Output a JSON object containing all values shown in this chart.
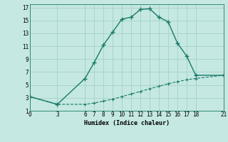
{
  "xlabel": "Humidex (Indice chaleur)",
  "background_color": "#c5e8e2",
  "grid_color": "#a8d4cc",
  "line_color": "#1a7a6a",
  "xticks": [
    0,
    3,
    6,
    7,
    8,
    9,
    10,
    11,
    12,
    13,
    14,
    15,
    16,
    17,
    18,
    21
  ],
  "yticks": [
    1,
    3,
    5,
    7,
    9,
    11,
    13,
    15,
    17
  ],
  "xlim": [
    0,
    21
  ],
  "ylim": [
    1,
    17.5
  ],
  "curve1_x": [
    0,
    3,
    6,
    7,
    8,
    9,
    10,
    11,
    12,
    13,
    14,
    15,
    16,
    17,
    18,
    21
  ],
  "curve1_y": [
    3.2,
    2.0,
    6.0,
    8.5,
    11.2,
    13.2,
    15.2,
    15.5,
    16.7,
    16.8,
    15.5,
    14.8,
    11.5,
    9.5,
    6.5,
    6.5
  ],
  "curve2_x": [
    0,
    3,
    6,
    7,
    8,
    9,
    10,
    11,
    12,
    13,
    14,
    15,
    16,
    17,
    18,
    21
  ],
  "curve2_y": [
    3.2,
    2.0,
    2.0,
    2.2,
    2.5,
    2.8,
    3.2,
    3.6,
    4.0,
    4.4,
    4.8,
    5.2,
    5.5,
    5.8,
    6.0,
    6.5
  ],
  "xlabel_fontsize": 6,
  "tick_fontsize": 5.5
}
